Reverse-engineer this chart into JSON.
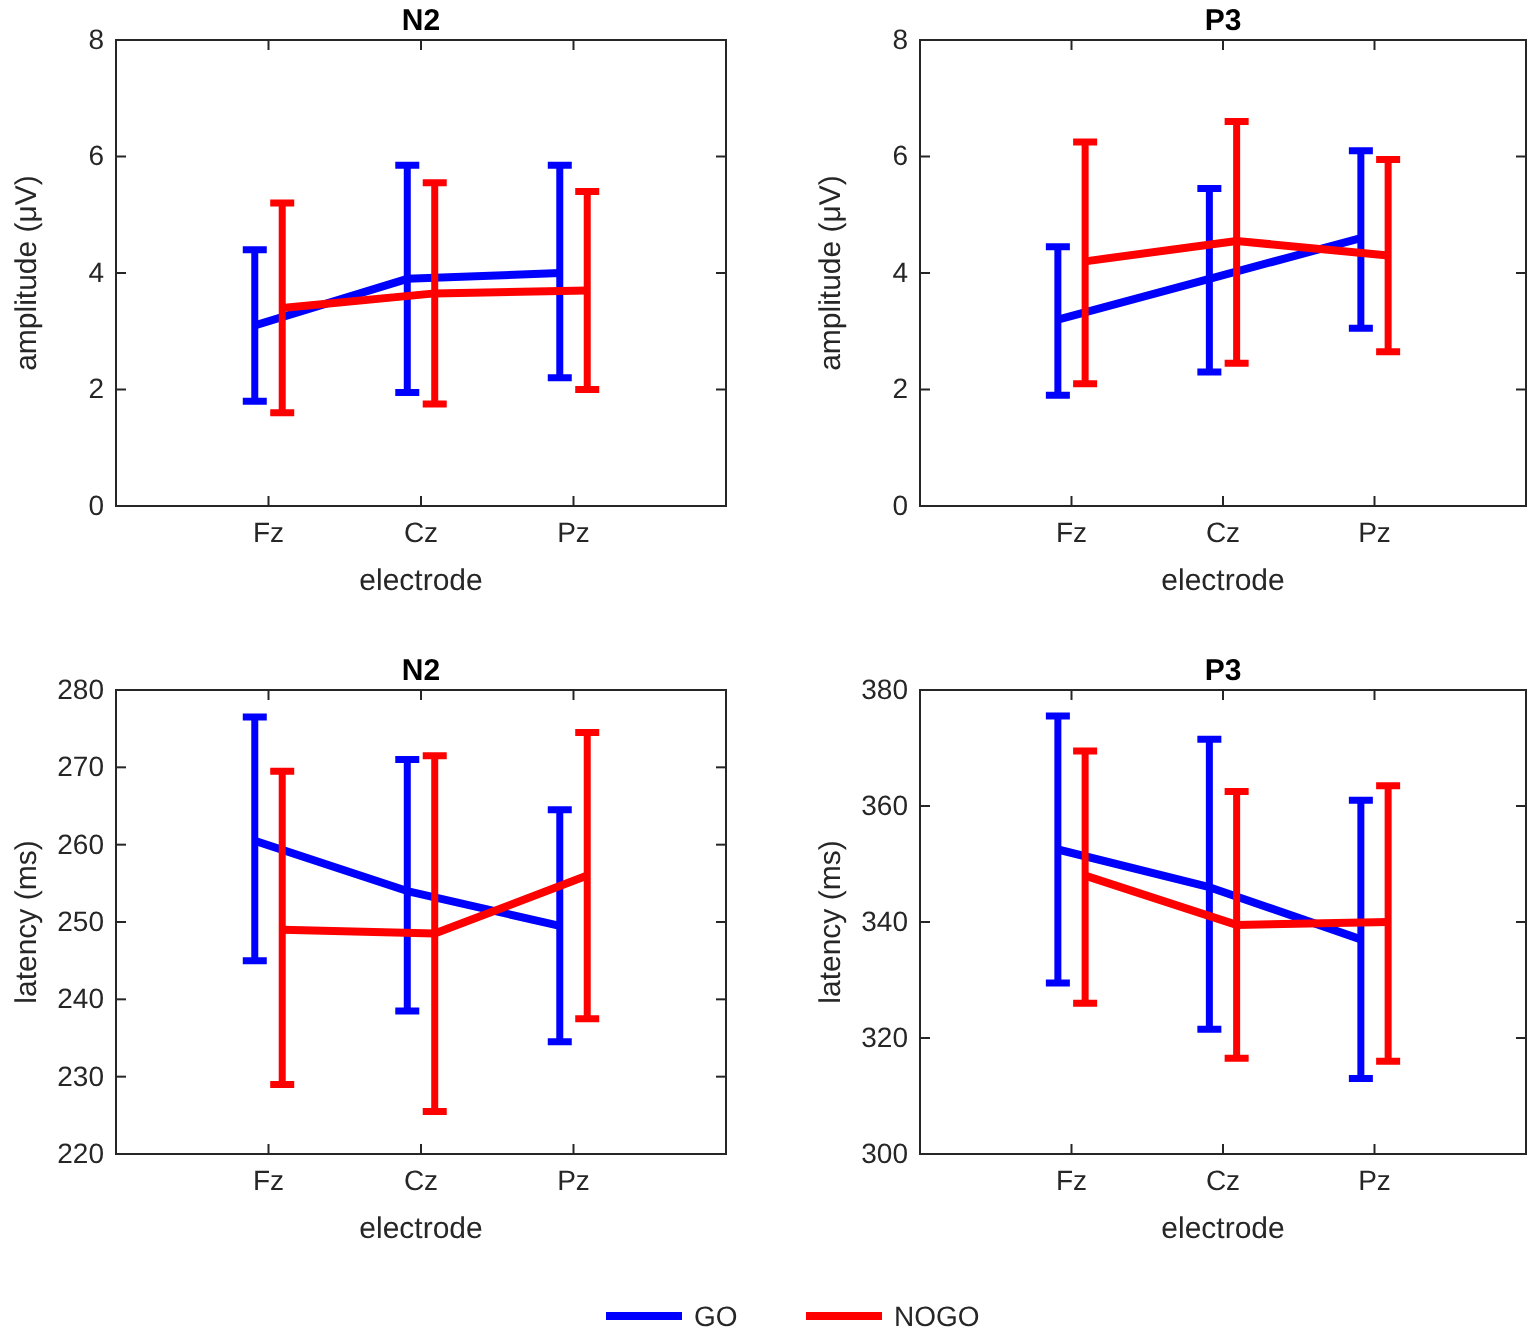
{
  "chart_data": [
    {
      "type": "line",
      "title": "N2",
      "xlabel": "electrode",
      "ylabel": "amplitude (μV)",
      "categories": [
        "Fz",
        "Cz",
        "Pz"
      ],
      "ylim": [
        0,
        8
      ],
      "yticks": [
        0,
        2,
        4,
        6,
        8
      ],
      "grid": false,
      "marker": "none",
      "line_style": "solid",
      "series": [
        {
          "color": "#0000ff",
          "values": [
            3.1,
            3.9,
            4.0
          ],
          "errors": [
            [
              1.8,
              4.4
            ],
            [
              1.95,
              5.85
            ],
            [
              2.2,
              5.85
            ]
          ]
        },
        {
          "color": "#ff0000",
          "values": [
            3.4,
            3.65,
            3.7
          ],
          "errors": [
            [
              1.6,
              5.2
            ],
            [
              1.75,
              5.55
            ],
            [
              2.0,
              5.4
            ]
          ]
        }
      ]
    },
    {
      "type": "line",
      "title": "P3",
      "xlabel": "electrode",
      "ylabel": "amplitude (μV)",
      "categories": [
        "Fz",
        "Cz",
        "Pz"
      ],
      "ylim": [
        0,
        8
      ],
      "yticks": [
        0,
        2,
        4,
        6,
        8
      ],
      "grid": false,
      "marker": "none",
      "line_style": "solid",
      "series": [
        {
          "color": "#0000ff",
          "values": [
            3.2,
            3.9,
            4.6
          ],
          "errors": [
            [
              1.9,
              4.45
            ],
            [
              2.3,
              5.45
            ],
            [
              3.05,
              6.1
            ]
          ]
        },
        {
          "color": "#ff0000",
          "values": [
            4.2,
            4.55,
            4.3
          ],
          "errors": [
            [
              2.1,
              6.25
            ],
            [
              2.45,
              6.6
            ],
            [
              2.65,
              5.95
            ]
          ]
        }
      ]
    },
    {
      "type": "line",
      "title": "N2",
      "xlabel": "electrode",
      "ylabel": "latency (ms)",
      "categories": [
        "Fz",
        "Cz",
        "Pz"
      ],
      "ylim": [
        220,
        280
      ],
      "yticks": [
        220,
        230,
        240,
        250,
        260,
        270,
        280
      ],
      "grid": false,
      "marker": "none",
      "line_style": "solid",
      "series": [
        {
          "color": "#0000ff",
          "values": [
            260.5,
            254,
            249.5
          ],
          "errors": [
            [
              245,
              276.5
            ],
            [
              238.5,
              271
            ],
            [
              234.5,
              264.5
            ]
          ]
        },
        {
          "color": "#ff0000",
          "values": [
            249,
            248.5,
            256
          ],
          "errors": [
            [
              229,
              269.5
            ],
            [
              225.5,
              271.5
            ],
            [
              237.5,
              274.5
            ]
          ]
        }
      ]
    },
    {
      "type": "line",
      "title": "P3",
      "xlabel": "electrode",
      "ylabel": "latency (ms)",
      "categories": [
        "Fz",
        "Cz",
        "Pz"
      ],
      "ylim": [
        300,
        380
      ],
      "yticks": [
        300,
        320,
        340,
        360,
        380
      ],
      "grid": false,
      "marker": "none",
      "line_style": "solid",
      "legend": "bottom",
      "series": [
        {
          "name": "GO",
          "color": "#0000ff",
          "values": [
            352.5,
            346,
            337
          ],
          "errors": [
            [
              329.5,
              375.5
            ],
            [
              321.5,
              371.5
            ],
            [
              313,
              361
            ]
          ]
        },
        {
          "name": "NOGO",
          "color": "#ff0000",
          "values": [
            348,
            339.5,
            340
          ],
          "errors": [
            [
              326,
              369.5
            ],
            [
              316.5,
              362.5
            ],
            [
              316,
              363.5
            ]
          ]
        }
      ]
    }
  ]
}
